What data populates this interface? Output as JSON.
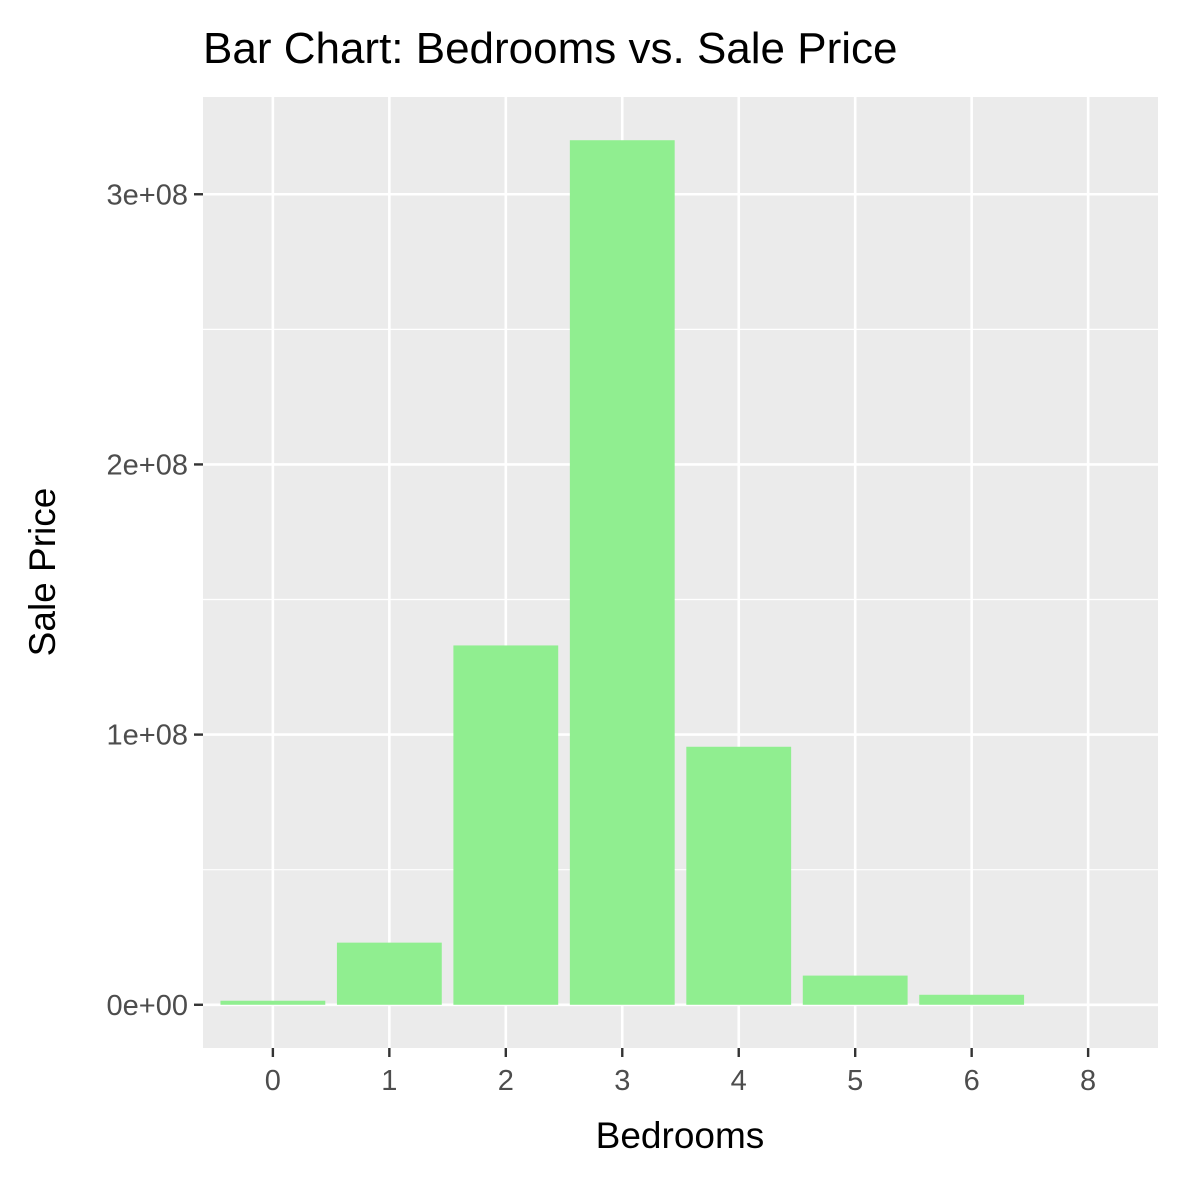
{
  "colors": {
    "panel_background": "#ebebeb",
    "grid": "#ffffff",
    "bar_fill": "#90ee90",
    "tick": "#333333",
    "tick_label": "#4d4d4d",
    "text": "#000000"
  },
  "chart_data": {
    "type": "bar",
    "title": "Bar Chart: Bedrooms vs. Sale Price",
    "xlabel": "Bedrooms",
    "ylabel": "Sale Price",
    "categories": [
      "0",
      "1",
      "2",
      "3",
      "4",
      "5",
      "6",
      "8"
    ],
    "values": [
      1500000,
      23000000,
      133000000,
      320000000,
      95500000,
      10800000,
      3700000,
      0
    ],
    "ylim": [
      -16000000,
      336000000
    ],
    "y_ticks": [
      0,
      100000000,
      200000000,
      300000000
    ],
    "y_tick_labels": [
      "0e+00",
      "1e+08",
      "2e+08",
      "3e+08"
    ],
    "y_minor_ticks": [
      50000000,
      150000000,
      250000000
    ],
    "grid": true,
    "legend": "none"
  }
}
